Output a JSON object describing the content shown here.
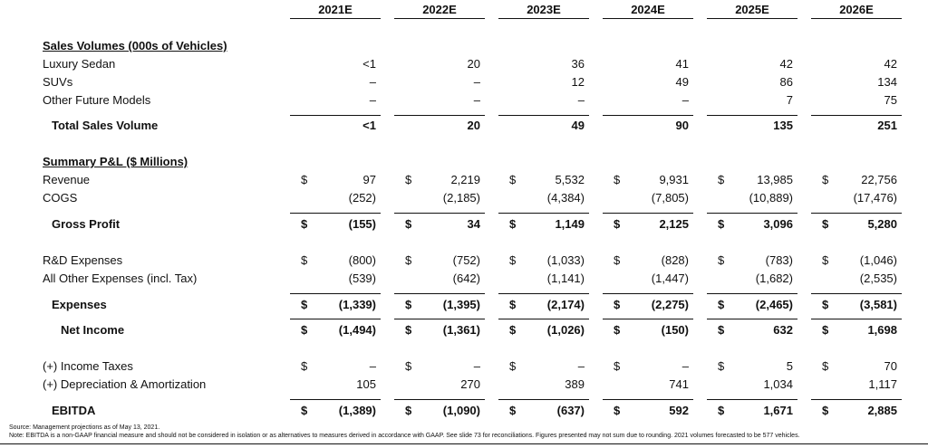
{
  "years": [
    "2021E",
    "2022E",
    "2023E",
    "2024E",
    "2025E",
    "2026E"
  ],
  "sections": {
    "sales_title": "Sales Volumes (000s of Vehicles)",
    "pl_title": "Summary P&L ($ Millions)"
  },
  "rows": [
    {
      "id": "luxury-sedan",
      "label": "Luxury Sedan",
      "values": [
        "<1",
        "20",
        "36",
        "41",
        "42",
        "42"
      ],
      "style": "normal",
      "dollar": false
    },
    {
      "id": "suvs",
      "label": "SUVs",
      "values": [
        "–",
        "–",
        "12",
        "49",
        "86",
        "134"
      ],
      "style": "normal",
      "dollar": false
    },
    {
      "id": "other-future-models",
      "label": "Other Future Models",
      "values": [
        "–",
        "–",
        "–",
        "–",
        "7",
        "75"
      ],
      "style": "normal",
      "dollar": false
    },
    {
      "id": "total-sales-volume",
      "label": "Total Sales Volume",
      "values": [
        "<1",
        "20",
        "49",
        "90",
        "135",
        "251"
      ],
      "style": "total",
      "dollar": false
    },
    {
      "id": "revenue",
      "label": "Revenue",
      "values": [
        "97",
        "2,219",
        "5,532",
        "9,931",
        "13,985",
        "22,756"
      ],
      "style": "normal",
      "dollar": true
    },
    {
      "id": "cogs",
      "label": "COGS",
      "values": [
        "(252)",
        "(2,185)",
        "(4,384)",
        "(7,805)",
        "(10,889)",
        "(17,476)"
      ],
      "style": "normal",
      "dollar": false
    },
    {
      "id": "gross-profit",
      "label": "Gross Profit",
      "values": [
        "(155)",
        "34",
        "1,149",
        "2,125",
        "3,096",
        "5,280"
      ],
      "style": "total",
      "dollar": true
    },
    {
      "id": "rd-expenses",
      "label": "R&D Expenses",
      "values": [
        "(800)",
        "(752)",
        "(1,033)",
        "(828)",
        "(783)",
        "(1,046)"
      ],
      "style": "normal",
      "dollar": true
    },
    {
      "id": "all-other-expenses",
      "label": "All Other Expenses (incl. Tax)",
      "values": [
        "(539)",
        "(642)",
        "(1,141)",
        "(1,447)",
        "(1,682)",
        "(2,535)"
      ],
      "style": "normal",
      "dollar": false
    },
    {
      "id": "expenses",
      "label": "Expenses",
      "values": [
        "(1,339)",
        "(1,395)",
        "(2,174)",
        "(2,275)",
        "(2,465)",
        "(3,581)"
      ],
      "style": "total",
      "dollar": true
    },
    {
      "id": "net-income",
      "label": "Net Income",
      "values": [
        "(1,494)",
        "(1,361)",
        "(1,026)",
        "(150)",
        "632",
        "1,698"
      ],
      "style": "total2",
      "dollar": true
    },
    {
      "id": "income-taxes",
      "label": "(+) Income Taxes",
      "values": [
        "–",
        "–",
        "–",
        "–",
        "5",
        "70"
      ],
      "style": "normal",
      "dollar": true
    },
    {
      "id": "depreciation-amortization",
      "label": "(+) Depreciation & Amortization",
      "values": [
        "105",
        "270",
        "389",
        "741",
        "1,034",
        "1,117"
      ],
      "style": "normal",
      "dollar": false
    },
    {
      "id": "ebitda",
      "label": "EBITDA",
      "values": [
        "(1,389)",
        "(1,090)",
        "(637)",
        "592",
        "1,671",
        "2,885"
      ],
      "style": "total",
      "dollar": true
    }
  ],
  "dollar_sign": "$",
  "footnotes": {
    "source": "Source: Management projections as of May 13, 2021.",
    "note": "Note: EBITDA is a non-GAAP financial measure and should not be considered in isolation or as alternatives to measures derived in accordance with GAAP. See slide 73 for reconciliations. Figures presented may not sum due to rounding. 2021 volumes forecasted to be 577 vehicles."
  }
}
